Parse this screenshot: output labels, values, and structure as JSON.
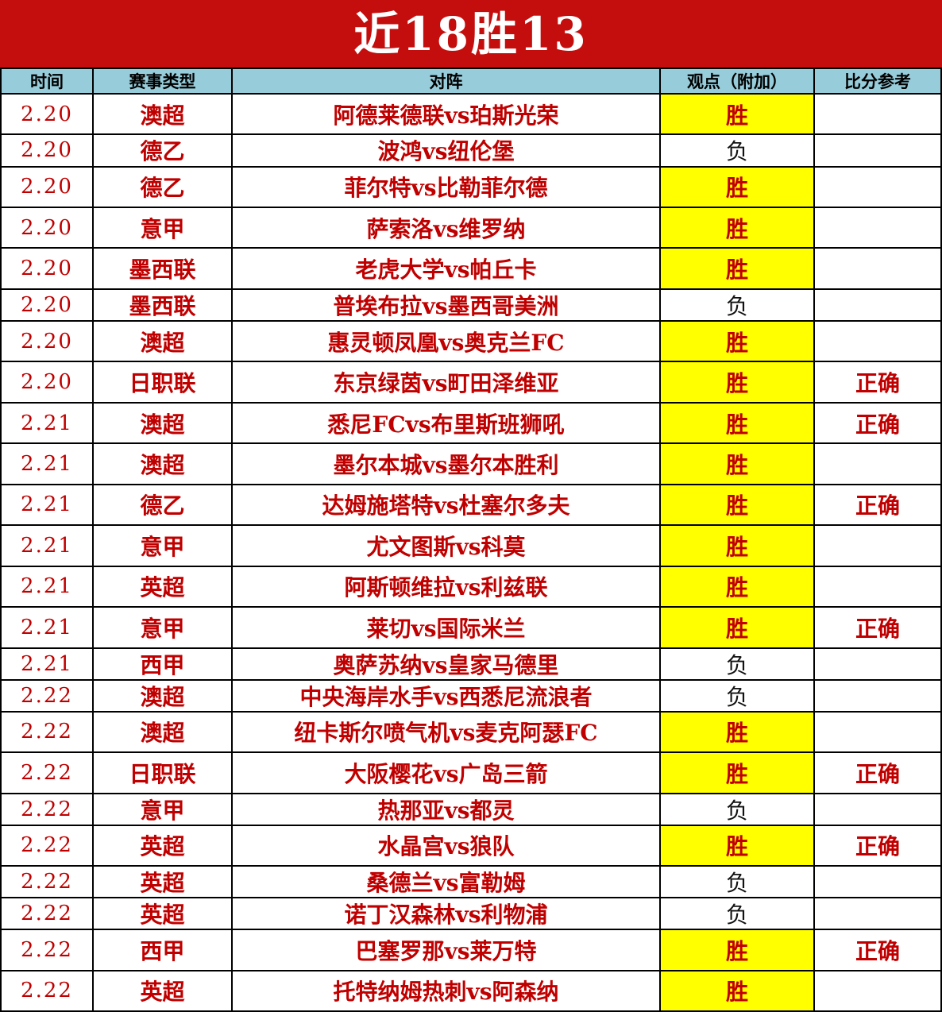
{
  "title": "近18胜13",
  "columns": [
    "时间",
    "赛事类型",
    "对阵",
    "观点（附加）",
    "比分参考"
  ],
  "labels": {
    "win": "胜",
    "lose": "负",
    "correct": "正确"
  },
  "colors": {
    "banner_red": "#c40d0d",
    "header_blue": "#97ccda",
    "highlight_yellow": "#ffff00",
    "text_red": "#c00000",
    "lose_text": "#111111",
    "border": "#000000"
  },
  "rows": [
    {
      "date": "2.20",
      "league": "澳超",
      "match": "阿德莱德联vs珀斯光荣",
      "pick": "胜",
      "result": ""
    },
    {
      "date": "2.20",
      "league": "德乙",
      "match": "波鸿vs纽伦堡",
      "pick": "负",
      "result": ""
    },
    {
      "date": "2.20",
      "league": "德乙",
      "match": "菲尔特vs比勒菲尔德",
      "pick": "胜",
      "result": ""
    },
    {
      "date": "2.20",
      "league": "意甲",
      "match": "萨索洛vs维罗纳",
      "pick": "胜",
      "result": ""
    },
    {
      "date": "2.20",
      "league": "墨西联",
      "match": "老虎大学vs帕丘卡",
      "pick": "胜",
      "result": ""
    },
    {
      "date": "2.20",
      "league": "墨西联",
      "match": "普埃布拉vs墨西哥美洲",
      "pick": "负",
      "result": ""
    },
    {
      "date": "2.20",
      "league": "澳超",
      "match": "惠灵顿凤凰vs奥克兰FC",
      "pick": "胜",
      "result": ""
    },
    {
      "date": "2.20",
      "league": "日职联",
      "match": "东京绿茵vs町田泽维亚",
      "pick": "胜",
      "result": "正确"
    },
    {
      "date": "2.21",
      "league": "澳超",
      "match": "悉尼FCvs布里斯班狮吼",
      "pick": "胜",
      "result": "正确"
    },
    {
      "date": "2.21",
      "league": "澳超",
      "match": "墨尔本城vs墨尔本胜利",
      "pick": "胜",
      "result": ""
    },
    {
      "date": "2.21",
      "league": "德乙",
      "match": "达姆施塔特vs杜塞尔多夫",
      "pick": "胜",
      "result": "正确"
    },
    {
      "date": "2.21",
      "league": "意甲",
      "match": "尤文图斯vs科莫",
      "pick": "胜",
      "result": ""
    },
    {
      "date": "2.21",
      "league": "英超",
      "match": "阿斯顿维拉vs利兹联",
      "pick": "胜",
      "result": ""
    },
    {
      "date": "2.21",
      "league": "意甲",
      "match": "莱切vs国际米兰",
      "pick": "胜",
      "result": "正确"
    },
    {
      "date": "2.21",
      "league": "西甲",
      "match": "奥萨苏纳vs皇家马德里",
      "pick": "负",
      "result": ""
    },
    {
      "date": "2.22",
      "league": "澳超",
      "match": "中央海岸水手vs西悉尼流浪者",
      "pick": "负",
      "result": ""
    },
    {
      "date": "2.22",
      "league": "澳超",
      "match": "纽卡斯尔喷气机vs麦克阿瑟FC",
      "pick": "胜",
      "result": ""
    },
    {
      "date": "2.22",
      "league": "日职联",
      "match": "大阪樱花vs广岛三箭",
      "pick": "胜",
      "result": "正确"
    },
    {
      "date": "2.22",
      "league": "意甲",
      "match": "热那亚vs都灵",
      "pick": "负",
      "result": ""
    },
    {
      "date": "2.22",
      "league": "英超",
      "match": "水晶宫vs狼队",
      "pick": "胜",
      "result": "正确"
    },
    {
      "date": "2.22",
      "league": "英超",
      "match": "桑德兰vs富勒姆",
      "pick": "负",
      "result": ""
    },
    {
      "date": "2.22",
      "league": "英超",
      "match": "诺丁汉森林vs利物浦",
      "pick": "负",
      "result": ""
    },
    {
      "date": "2.22",
      "league": "西甲",
      "match": "巴塞罗那vs莱万特",
      "pick": "胜",
      "result": "正确"
    },
    {
      "date": "2.22",
      "league": "英超",
      "match": "托特纳姆热刺vs阿森纳",
      "pick": "胜",
      "result": ""
    }
  ]
}
